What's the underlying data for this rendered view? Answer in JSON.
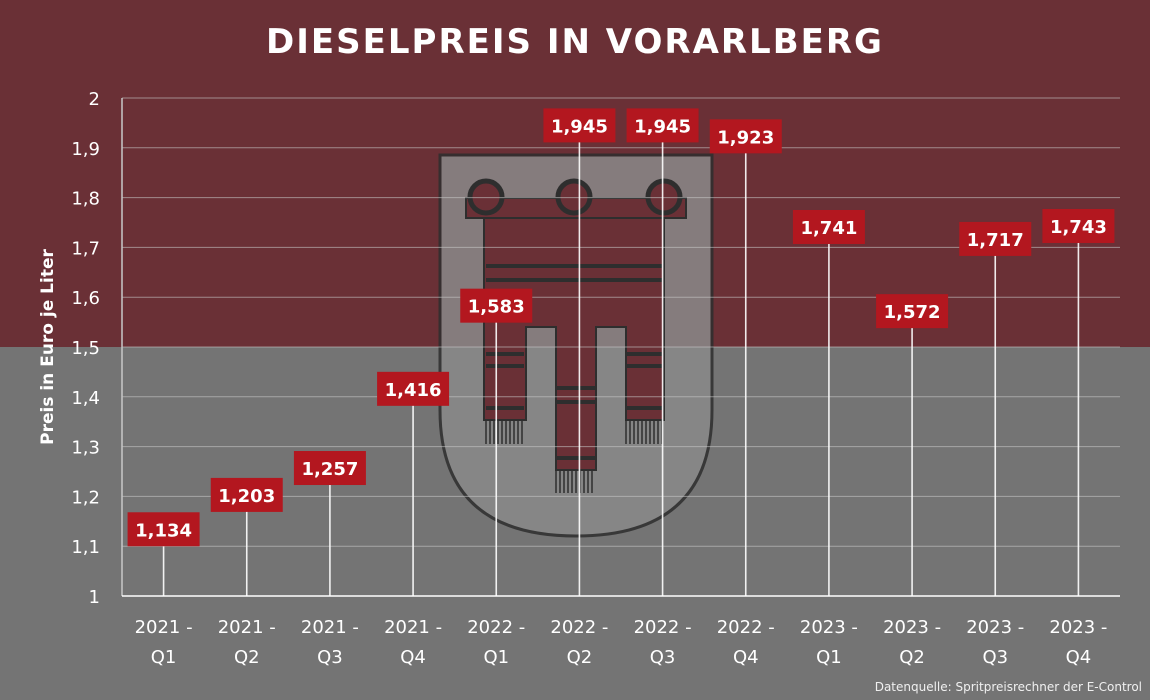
{
  "page": {
    "title": "DIESELPREIS IN VORARLBERG",
    "source": "Datenquelle: Spritpreisrechner der E-Control"
  },
  "colors": {
    "top_band": "#6a3036",
    "bottom_band": "#747474",
    "label_box": "#b3171f",
    "text": "#ffffff",
    "grid": "#c8c8c8",
    "crest_fill": "#8a8a8a",
    "crest_stroke": "#2e2e2e"
  },
  "chart_data": {
    "type": "bar",
    "title": "DIESELPREIS IN VORARLBERG",
    "ylabel": "Preis in Euro je Liter",
    "xlabel": "",
    "ylim": [
      1,
      2
    ],
    "yticks": [
      "1",
      "1,1",
      "1,2",
      "1,3",
      "1,4",
      "1,5",
      "1,6",
      "1,7",
      "1,8",
      "1,9",
      "2"
    ],
    "categories": [
      [
        "2021 -",
        "Q1"
      ],
      [
        "2021 -",
        "Q2"
      ],
      [
        "2021 -",
        "Q3"
      ],
      [
        "2021 -",
        "Q4"
      ],
      [
        "2022 -",
        "Q1"
      ],
      [
        "2022 -",
        "Q2"
      ],
      [
        "2022 -",
        "Q3"
      ],
      [
        "2022 -",
        "Q4"
      ],
      [
        "2023 -",
        "Q1"
      ],
      [
        "2023 -",
        "Q2"
      ],
      [
        "2023 -",
        "Q3"
      ],
      [
        "2023 -",
        "Q4"
      ]
    ],
    "values": [
      1.134,
      1.203,
      1.257,
      1.416,
      1.583,
      1.945,
      1.945,
      1.923,
      1.741,
      1.572,
      1.717,
      1.743
    ],
    "labels": [
      "1,134",
      "1,203",
      "1,257",
      "1,416",
      "1,583",
      "1,945",
      "1,945",
      "1,923",
      "1,741",
      "1,572",
      "1,717",
      "1,743"
    ],
    "grid": true,
    "legend": "none",
    "background": "Wappen von Vorarlberg"
  }
}
